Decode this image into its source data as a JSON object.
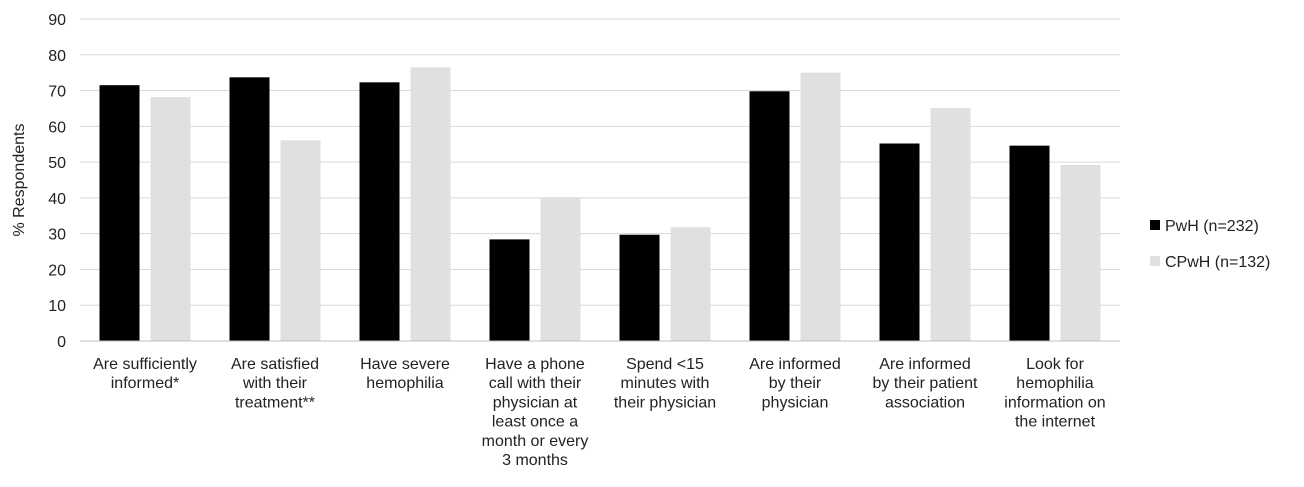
{
  "chart_data": {
    "type": "bar",
    "ylabel": "% Respondents",
    "ylim": [
      0,
      90
    ],
    "yticks": [
      0,
      10,
      20,
      30,
      40,
      50,
      60,
      70,
      80,
      90
    ],
    "grid": true,
    "legend_position": "right",
    "categories": [
      [
        "Are sufficiently",
        "informed*"
      ],
      [
        "Are satisfied",
        "with their",
        "treatment**"
      ],
      [
        "Have severe",
        "hemophilia"
      ],
      [
        "Have a phone",
        "call with their",
        "physician at",
        "least once a",
        "month or every",
        "3 months"
      ],
      [
        "Spend <15",
        "minutes with",
        "their physician"
      ],
      [
        "Are informed",
        "by their",
        "physician"
      ],
      [
        "Are informed",
        "by their patient",
        "association"
      ],
      [
        "Look for",
        "hemophilia",
        "information on",
        "the internet"
      ]
    ],
    "series": [
      {
        "name": "PwH (n=232)",
        "color": "#000000",
        "values": [
          71.5,
          73.7,
          72.3,
          28.4,
          29.7,
          69.8,
          55.2,
          54.6
        ]
      },
      {
        "name": "CPwH (n=132)",
        "color": "#e0e0e0",
        "values": [
          68.2,
          56.1,
          76.5,
          40.2,
          31.8,
          75.0,
          65.1,
          49.2
        ]
      }
    ]
  }
}
